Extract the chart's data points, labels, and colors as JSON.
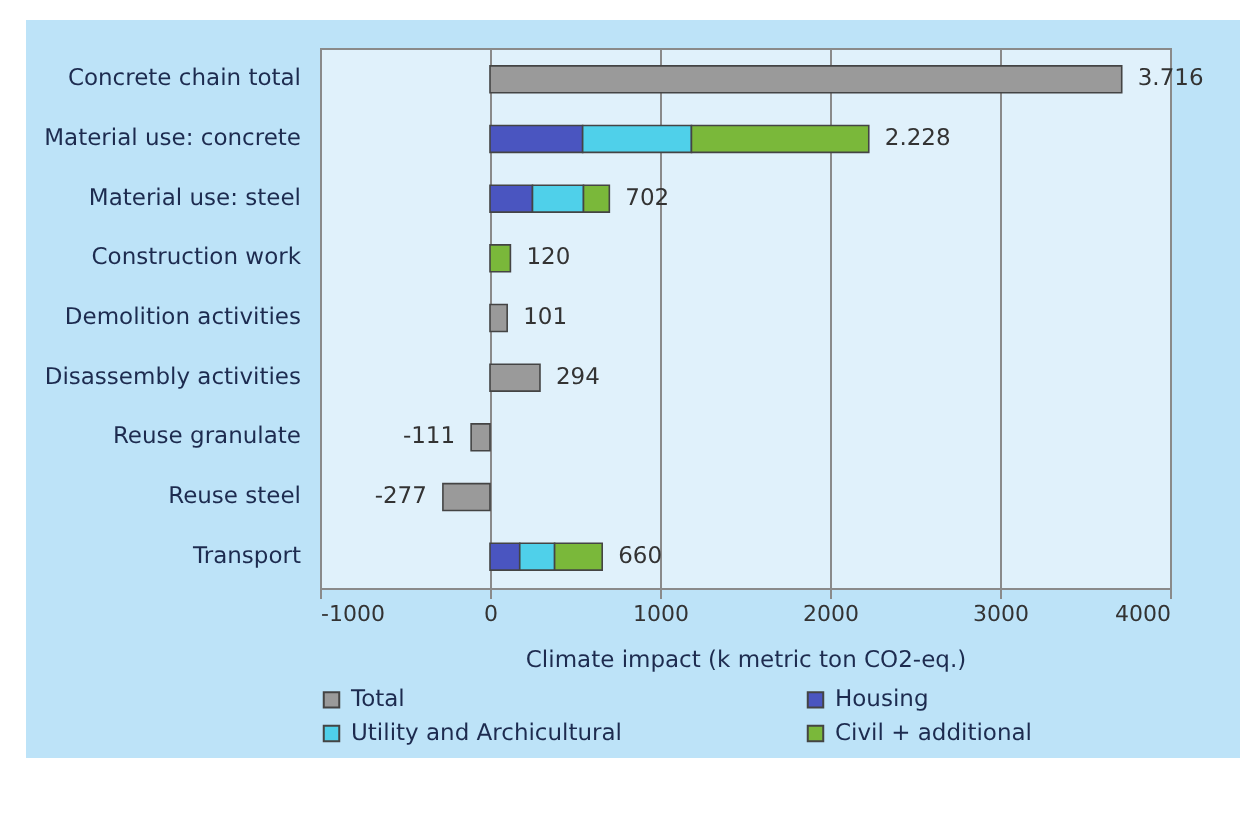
{
  "chart_data": {
    "type": "bar",
    "orientation": "horizontal",
    "stacked": true,
    "categories": [
      "Concrete chain total",
      "Material use: concrete",
      "Material use: steel",
      "Construction work",
      "Demolition activities",
      "Disassembly activities",
      "Reuse granulate",
      "Reuse steel",
      "Transport"
    ],
    "series": [
      {
        "name": "Total",
        "color": "#9a9a9a",
        "values": [
          3716,
          null,
          null,
          null,
          101,
          294,
          -111,
          -277,
          null
        ]
      },
      {
        "name": "Housing",
        "color": "#4a55c0",
        "values": [
          null,
          545,
          250,
          null,
          null,
          null,
          null,
          null,
          175
        ]
      },
      {
        "name": "Utility and Archicultural",
        "color": "#4fd0ea",
        "values": [
          null,
          640,
          300,
          null,
          null,
          null,
          null,
          null,
          205
        ]
      },
      {
        "name": "Civil + additional",
        "color": "#7ab83a",
        "values": [
          null,
          1043,
          152,
          120,
          null,
          null,
          null,
          null,
          280
        ]
      }
    ],
    "totals": [
      "3.716",
      "2.228",
      "702",
      "120",
      "101",
      "294",
      "-111",
      "-277",
      "660"
    ],
    "xlim": [
      -1000,
      4000
    ],
    "xticks": [
      -1000,
      0,
      1000,
      2000,
      3000,
      4000
    ],
    "xlabel": "Climate impact (k metric ton CO2-eq.)",
    "grid": "x",
    "legend": "bottom"
  }
}
